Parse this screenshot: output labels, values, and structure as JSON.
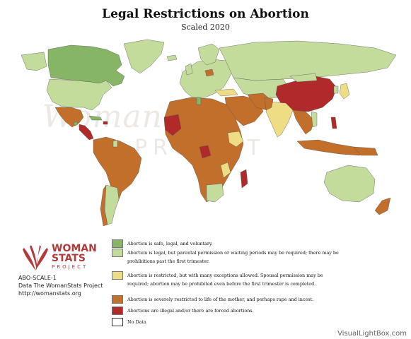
{
  "title": "Legal Restrictions on Abortion",
  "subtitle": "Scaled 2020",
  "watermark": {
    "main": "WomanStats",
    "sub": "PROJECT"
  },
  "logo": {
    "line1": "WOMAN",
    "line2": "STATS",
    "line3": "PROJECT"
  },
  "info": {
    "scale_id": "ABO-SCALE-1",
    "source": "Data The WomanStats Project",
    "url": "http://womanstats.org"
  },
  "legend": [
    {
      "color": "#86b566",
      "label": "Abortion is safe, legal, and voluntary."
    },
    {
      "color": "#c3dc9c",
      "label": "Abortion is legal, but parental permission or waiting periods may be required; there may be prohibitions past the first trimester."
    },
    {
      "color": "#efdd86",
      "label": "Abortion is restricted, but with many exceptions allowed. Spousal permission may be required; abortion may be prohibited even before the first trimester is completed."
    },
    {
      "color": "#c26f2b",
      "label": "Abortion is severely restricted to life of the mother, and perhaps rape and incest."
    },
    {
      "color": "#b02a2a",
      "label": "Abortions are illegal and/or there are forced abortions."
    },
    {
      "color": "#ffffff",
      "label": "No Data"
    }
  ],
  "colors": {
    "safe_legal": "#86b566",
    "legal_restricted": "#c3dc9c",
    "restricted_exceptions": "#efdd86",
    "severely_restricted": "#c26f2b",
    "illegal": "#b02a2a",
    "no_data": "#ffffff"
  },
  "credit": "VisualLightBox.com"
}
